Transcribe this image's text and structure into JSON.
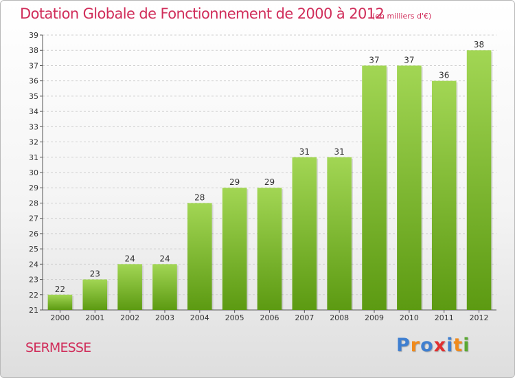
{
  "header": {
    "title": "Dotation Globale de Fonctionnement de 2000 à 2012",
    "subtitle": "(en milliers d'€)"
  },
  "footer": {
    "commune": "SERMESSE",
    "logo_letters": [
      "P",
      "r",
      "o",
      "x",
      "i",
      "t",
      "i"
    ],
    "logo_colors": [
      "#3f7fd0",
      "#f08a1c",
      "#3f7fd0",
      "#e03030",
      "#3f7fd0",
      "#f08a1c",
      "#5aa832"
    ]
  },
  "chart_data": {
    "type": "bar",
    "categories": [
      "2000",
      "2001",
      "2002",
      "2003",
      "2004",
      "2005",
      "2006",
      "2007",
      "2008",
      "2009",
      "2010",
      "2011",
      "2012"
    ],
    "values": [
      22,
      23,
      24,
      24,
      28,
      29,
      29,
      31,
      31,
      37,
      37,
      36,
      38
    ],
    "ylim": [
      21,
      39
    ],
    "yticks": [
      21,
      22,
      23,
      24,
      25,
      26,
      27,
      28,
      29,
      30,
      31,
      32,
      33,
      34,
      35,
      36,
      37,
      38,
      39
    ],
    "grid": true,
    "data_labels": true,
    "bar_color_top": "#a2d654",
    "bar_color_bottom": "#5c9a12"
  }
}
